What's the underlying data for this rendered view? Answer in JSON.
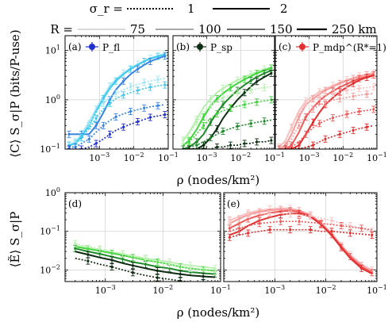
{
  "legend": {
    "sigma_label": "σ_r =",
    "sigma_entries": [
      {
        "label": "1",
        "style": "dotted"
      },
      {
        "label": "2",
        "style": "solid"
      }
    ],
    "r_label": "R =",
    "r_entries": [
      "75",
      "100",
      "150",
      "250 km"
    ]
  },
  "colors": {
    "fl": [
      "#9fe6f5",
      "#3ec9ee",
      "#3a84e6",
      "#1f2fd0"
    ],
    "sp": [
      "#b6f0ad",
      "#3fd63a",
      "#1f8a2a",
      "#0f2f14"
    ],
    "mdp": [
      "#f9c3c3",
      "#f59a9a",
      "#ee5a5a",
      "#e23030"
    ]
  },
  "chart_data": [
    {
      "type": "line",
      "panel": "(a)",
      "legend_label": "P_fl",
      "ylabel": "⟨C⟩ S_σ|P (bits/P-use)",
      "xscale": "log",
      "yscale": "log",
      "xlim": [
        0.0001,
        0.1
      ],
      "ylim": [
        0.1,
        20
      ],
      "x_ticks": [
        "10^-3",
        "10^-2",
        "10^-1"
      ],
      "y_ticks": [
        "10^-1",
        "10^0",
        "10^1"
      ],
      "x": [
        0.00013,
        0.0002,
        0.0003,
        0.0005,
        0.0008,
        0.0013,
        0.002,
        0.003,
        0.005,
        0.008,
        0.013,
        0.02,
        0.03,
        0.05,
        0.08
      ],
      "series": [
        {
          "R": "75",
          "sigma_r": 2,
          "values": [
            0.12,
            0.14,
            0.2,
            0.35,
            0.65,
            1.2,
            1.9,
            2.6,
            3.5,
            4.4,
            5.3,
            6.2,
            7.0,
            7.8,
            8.5
          ]
        },
        {
          "R": "100",
          "sigma_r": 2,
          "values": [
            0.12,
            0.13,
            0.18,
            0.3,
            0.58,
            1.05,
            1.7,
            2.4,
            3.3,
            4.2,
            5.1,
            6.0,
            6.8,
            7.6,
            8.3
          ]
        },
        {
          "R": "150",
          "sigma_r": 2,
          "values": [
            0.2,
            0.2,
            0.2,
            0.2,
            0.3,
            0.55,
            1.0,
            1.6,
            2.4,
            3.3,
            4.2,
            5.1,
            6.0,
            6.9,
            7.7
          ]
        },
        {
          "R": "75",
          "sigma_r": 1,
          "values": [
            0.12,
            0.14,
            0.2,
            0.33,
            0.55,
            0.85,
            1.1,
            1.35,
            1.6,
            1.85,
            2.05,
            2.25,
            2.4,
            2.6,
            2.75
          ]
        },
        {
          "R": "100",
          "sigma_r": 1,
          "values": [
            0.12,
            0.13,
            0.17,
            0.26,
            0.42,
            0.65,
            0.85,
            1.05,
            1.25,
            1.4,
            1.55,
            1.7,
            1.8,
            1.92,
            2.0
          ]
        },
        {
          "R": "150",
          "sigma_r": 1,
          "values": [
            0.11,
            0.11,
            0.13,
            0.16,
            0.22,
            0.3,
            0.38,
            0.45,
            0.52,
            0.58,
            0.63,
            0.68,
            0.72,
            0.76,
            0.8
          ]
        },
        {
          "R": "250 km",
          "sigma_r": 1,
          "values": [
            0.1,
            0.1,
            0.1,
            0.11,
            0.13,
            0.16,
            0.2,
            0.24,
            0.28,
            0.32,
            0.36,
            0.4,
            0.44,
            0.47,
            0.5
          ]
        }
      ]
    },
    {
      "type": "line",
      "panel": "(b)",
      "legend_label": "P_sp",
      "xscale": "log",
      "yscale": "log",
      "xlim": [
        0.0001,
        0.1
      ],
      "ylim": [
        0.1,
        20
      ],
      "x_ticks": [
        "10^-3",
        "10^-2",
        "10^-1"
      ],
      "x": [
        0.0002,
        0.0003,
        0.0005,
        0.0008,
        0.0013,
        0.002,
        0.003,
        0.005,
        0.008,
        0.013,
        0.02,
        0.03,
        0.05,
        0.08
      ],
      "series": [
        {
          "R": "75",
          "sigma_r": 2,
          "values": [
            0.15,
            0.22,
            0.4,
            0.7,
            1.05,
            1.4,
            1.7,
            2.1,
            2.5,
            2.9,
            3.3,
            3.7,
            4.2,
            4.6
          ]
        },
        {
          "R": "100",
          "sigma_r": 2,
          "values": [
            0.12,
            0.15,
            0.25,
            0.45,
            0.75,
            1.05,
            1.35,
            1.75,
            2.15,
            2.6,
            3.0,
            3.45,
            3.95,
            4.4
          ]
        },
        {
          "R": "150",
          "sigma_r": 2,
          "values": [
            0.1,
            0.11,
            0.14,
            0.2,
            0.35,
            0.55,
            0.8,
            1.15,
            1.55,
            2.0,
            2.45,
            2.9,
            3.45,
            3.95
          ]
        },
        {
          "R": "250 km",
          "sigma_r": 2,
          "values": [
            0.1,
            0.1,
            0.1,
            0.12,
            0.17,
            0.26,
            0.42,
            0.68,
            1.0,
            1.4,
            1.85,
            2.35,
            2.9,
            3.45
          ]
        },
        {
          "R": "75",
          "sigma_r": 1,
          "values": [
            0.15,
            0.2,
            0.35,
            0.55,
            0.78,
            0.95,
            1.1,
            1.25,
            1.38,
            1.48,
            1.58,
            1.68,
            1.78,
            1.85
          ]
        },
        {
          "R": "100",
          "sigma_r": 1,
          "values": [
            0.12,
            0.14,
            0.2,
            0.3,
            0.42,
            0.52,
            0.6,
            0.68,
            0.74,
            0.8,
            0.85,
            0.9,
            0.95,
            1.0
          ]
        },
        {
          "R": "150",
          "sigma_r": 1,
          "values": [
            0.1,
            0.11,
            0.12,
            0.14,
            0.17,
            0.2,
            0.23,
            0.26,
            0.29,
            0.31,
            0.33,
            0.35,
            0.37,
            0.39
          ]
        },
        {
          "R": "250 km",
          "sigma_r": 1,
          "values": [
            0.1,
            0.1,
            0.1,
            0.1,
            0.1,
            0.11,
            0.11,
            0.12,
            0.12,
            0.13,
            0.13,
            0.14,
            0.14,
            0.15
          ]
        }
      ]
    },
    {
      "type": "line",
      "panel": "(c)",
      "legend_label": "P_mdp^(R*=1)",
      "xscale": "log",
      "yscale": "log",
      "xlim": [
        0.0001,
        0.1
      ],
      "ylim": [
        0.1,
        20
      ],
      "x_ticks": [
        "10^-3",
        "10^-2",
        "10^-1"
      ],
      "x": [
        0.00013,
        0.0002,
        0.0003,
        0.0005,
        0.0008,
        0.0013,
        0.002,
        0.003,
        0.005,
        0.008,
        0.013,
        0.02,
        0.03,
        0.05,
        0.08
      ],
      "series": [
        {
          "R": "75",
          "sigma_r": 2,
          "values": [
            0.11,
            0.15,
            0.28,
            0.6,
            0.95,
            1.2,
            1.45,
            1.65,
            1.95,
            2.25,
            2.55,
            2.8,
            3.05,
            3.3,
            3.5
          ]
        },
        {
          "R": "100",
          "sigma_r": 2,
          "values": [
            0.1,
            0.12,
            0.2,
            0.45,
            0.8,
            1.05,
            1.3,
            1.55,
            1.85,
            2.15,
            2.45,
            2.7,
            2.95,
            3.2,
            3.4
          ]
        },
        {
          "R": "150",
          "sigma_r": 2,
          "values": [
            0.1,
            0.1,
            0.12,
            0.22,
            0.45,
            0.7,
            0.95,
            1.2,
            1.5,
            1.8,
            2.1,
            2.4,
            2.7,
            2.95,
            3.2
          ]
        },
        {
          "R": "250 km",
          "sigma_r": 2,
          "values": [
            0.1,
            0.1,
            0.1,
            0.12,
            0.2,
            0.35,
            0.55,
            0.8,
            1.1,
            1.45,
            1.8,
            2.15,
            2.5,
            2.85,
            3.1
          ]
        },
        {
          "R": "75",
          "sigma_r": 1,
          "values": [
            0.11,
            0.15,
            0.27,
            0.55,
            0.85,
            1.0,
            1.15,
            1.25,
            1.35,
            1.45,
            1.55,
            1.62,
            1.7,
            1.78,
            1.85
          ]
        },
        {
          "R": "100",
          "sigma_r": 1,
          "values": [
            0.1,
            0.11,
            0.16,
            0.3,
            0.5,
            0.65,
            0.78,
            0.88,
            0.98,
            1.05,
            1.12,
            1.18,
            1.24,
            1.3,
            1.35
          ]
        },
        {
          "R": "150",
          "sigma_r": 1,
          "values": [
            0.1,
            0.1,
            0.11,
            0.14,
            0.2,
            0.27,
            0.33,
            0.38,
            0.43,
            0.47,
            0.51,
            0.55,
            0.58,
            0.61,
            0.64
          ]
        },
        {
          "R": "250 km",
          "sigma_r": 1,
          "values": [
            0.1,
            0.1,
            0.1,
            0.1,
            0.11,
            0.12,
            0.14,
            0.16,
            0.18,
            0.2,
            0.22,
            0.24,
            0.26,
            0.28,
            0.3
          ]
        }
      ]
    },
    {
      "type": "line",
      "panel": "(d)",
      "ylabel": "⟨Ẽ⟩ S_σ|P",
      "xscale": "log",
      "yscale": "log",
      "xlim": [
        0.0002,
        0.1
      ],
      "ylim": [
        0.005,
        1
      ],
      "x_ticks": [
        "10^-3",
        "10^-2",
        "10^-1"
      ],
      "y_ticks": [
        "10^-2",
        "10^-1",
        "10^0"
      ],
      "x": [
        0.0003,
        0.0005,
        0.0008,
        0.0013,
        0.002,
        0.003,
        0.005,
        0.008,
        0.013,
        0.02,
        0.03,
        0.05,
        0.08
      ],
      "series": [
        {
          "R": "75",
          "sigma_r": 2,
          "values": [
            0.042,
            0.038,
            0.033,
            0.029,
            0.026,
            0.023,
            0.02,
            0.018,
            0.016,
            0.014,
            0.013,
            0.012,
            0.011
          ]
        },
        {
          "R": "100",
          "sigma_r": 2,
          "values": [
            0.04,
            0.035,
            0.031,
            0.027,
            0.024,
            0.021,
            0.018,
            0.016,
            0.014,
            0.012,
            0.011,
            0.01,
            0.0095
          ]
        },
        {
          "R": "150",
          "sigma_r": 2,
          "values": [
            0.036,
            0.03,
            0.026,
            0.022,
            0.019,
            0.016,
            0.014,
            0.012,
            0.011,
            0.0095,
            0.0088,
            0.0082,
            0.0078
          ]
        },
        {
          "R": "250 km",
          "sigma_r": 2,
          "values": [
            0.03,
            0.025,
            0.021,
            0.018,
            0.015,
            0.013,
            0.011,
            0.0095,
            0.0085,
            0.0078,
            0.0072,
            0.0068,
            0.0065
          ]
        },
        {
          "R": "75",
          "sigma_r": 1,
          "values": [
            0.048,
            0.041,
            0.035,
            0.03,
            0.026,
            0.022,
            0.019,
            0.016,
            0.014,
            0.012,
            0.011,
            0.01,
            0.009
          ]
        },
        {
          "R": "250 km",
          "sigma_r": 1,
          "values": [
            0.02,
            0.017,
            0.014,
            0.012,
            0.01,
            0.0085,
            0.0072,
            0.0063,
            0.0057,
            0.0052,
            0.0049,
            0.0046,
            0.0044
          ]
        }
      ]
    },
    {
      "type": "line",
      "panel": "(e)",
      "xscale": "log",
      "yscale": "log",
      "xlim": [
        0.0001,
        0.1
      ],
      "ylim": [
        0.005,
        1
      ],
      "x_ticks": [
        "10^-3",
        "10^-2",
        "10^-1"
      ],
      "x": [
        0.00013,
        0.0002,
        0.0003,
        0.0005,
        0.0008,
        0.0013,
        0.002,
        0.003,
        0.005,
        0.008,
        0.013,
        0.02,
        0.03,
        0.05,
        0.08
      ],
      "series": [
        {
          "R": "75",
          "sigma_r": 2,
          "values": [
            0.19,
            0.24,
            0.3,
            0.35,
            0.38,
            0.4,
            0.39,
            0.35,
            0.27,
            0.17,
            0.09,
            0.045,
            0.025,
            0.014,
            0.01
          ]
        },
        {
          "R": "100",
          "sigma_r": 2,
          "values": [
            0.16,
            0.21,
            0.27,
            0.32,
            0.35,
            0.37,
            0.37,
            0.34,
            0.26,
            0.16,
            0.085,
            0.042,
            0.023,
            0.013,
            0.009
          ]
        },
        {
          "R": "150",
          "sigma_r": 2,
          "values": [
            0.12,
            0.16,
            0.21,
            0.26,
            0.3,
            0.33,
            0.34,
            0.32,
            0.25,
            0.16,
            0.082,
            0.04,
            0.022,
            0.012,
            0.0085
          ]
        },
        {
          "R": "250 km",
          "sigma_r": 2,
          "values": [
            0.08,
            0.1,
            0.14,
            0.19,
            0.23,
            0.27,
            0.29,
            0.29,
            0.24,
            0.15,
            0.078,
            0.038,
            0.02,
            0.011,
            0.008
          ]
        },
        {
          "R": "75",
          "sigma_r": 1,
          "values": [
            0.2,
            0.24,
            0.27,
            0.28,
            0.29,
            0.29,
            0.28,
            0.27,
            0.25,
            0.22,
            0.19,
            0.16,
            0.14,
            0.12,
            0.1
          ]
        },
        {
          "R": "150",
          "sigma_r": 1,
          "values": [
            0.1,
            0.12,
            0.14,
            0.16,
            0.17,
            0.18,
            0.18,
            0.18,
            0.17,
            0.16,
            0.15,
            0.14,
            0.13,
            0.12,
            0.11
          ]
        },
        {
          "R": "250 km",
          "sigma_r": 1,
          "values": [
            0.07,
            0.08,
            0.09,
            0.1,
            0.11,
            0.11,
            0.11,
            0.11,
            0.11,
            0.1,
            0.1,
            0.095,
            0.09,
            0.085,
            0.08
          ]
        }
      ]
    }
  ],
  "axis_labels": {
    "x_top": "ρ (nodes/km²)",
    "x_bottom": "ρ (nodes/km²)"
  }
}
